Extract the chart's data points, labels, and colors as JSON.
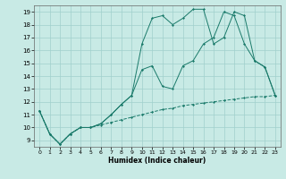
{
  "xlabel": "Humidex (Indice chaleur)",
  "xlim": [
    -0.5,
    23.5
  ],
  "ylim": [
    8.5,
    19.5
  ],
  "yticks": [
    9,
    10,
    11,
    12,
    13,
    14,
    15,
    16,
    17,
    18,
    19
  ],
  "xticks": [
    0,
    1,
    2,
    3,
    4,
    5,
    6,
    7,
    8,
    9,
    10,
    11,
    12,
    13,
    14,
    15,
    16,
    17,
    18,
    19,
    20,
    21,
    22,
    23
  ],
  "bg_color": "#c8eae5",
  "grid_color": "#a0d0cc",
  "line_color": "#1a7a6a",
  "line1_x": [
    0,
    1,
    2,
    3,
    4,
    5,
    6,
    7,
    8,
    9,
    10,
    11,
    12,
    13,
    14,
    15,
    16,
    17,
    18,
    19,
    20,
    21,
    22,
    23
  ],
  "line1_y": [
    11.3,
    9.5,
    8.7,
    9.5,
    10.0,
    10.0,
    10.3,
    11.0,
    11.8,
    12.5,
    16.5,
    18.5,
    18.7,
    18.0,
    18.5,
    19.2,
    19.2,
    16.5,
    17.0,
    19.0,
    18.7,
    15.2,
    14.7,
    12.5
  ],
  "line2_x": [
    0,
    1,
    2,
    3,
    4,
    5,
    6,
    7,
    8,
    9,
    10,
    11,
    12,
    13,
    14,
    15,
    16,
    17,
    18,
    19,
    20,
    21,
    22,
    23
  ],
  "line2_y": [
    11.3,
    9.5,
    8.7,
    9.5,
    10.0,
    10.0,
    10.3,
    11.0,
    11.8,
    12.5,
    14.5,
    14.8,
    13.2,
    13.0,
    14.8,
    15.2,
    16.5,
    17.0,
    19.0,
    18.7,
    16.5,
    15.2,
    14.7,
    12.5
  ],
  "line3_x": [
    0,
    1,
    2,
    3,
    4,
    5,
    6,
    7,
    8,
    9,
    10,
    11,
    12,
    13,
    14,
    15,
    16,
    17,
    18,
    19,
    20,
    21,
    22,
    23
  ],
  "line3_y": [
    11.3,
    9.5,
    8.7,
    9.5,
    10.0,
    10.0,
    10.2,
    10.4,
    10.6,
    10.8,
    11.0,
    11.2,
    11.4,
    11.5,
    11.7,
    11.8,
    11.9,
    12.0,
    12.1,
    12.2,
    12.3,
    12.4,
    12.4,
    12.5
  ]
}
